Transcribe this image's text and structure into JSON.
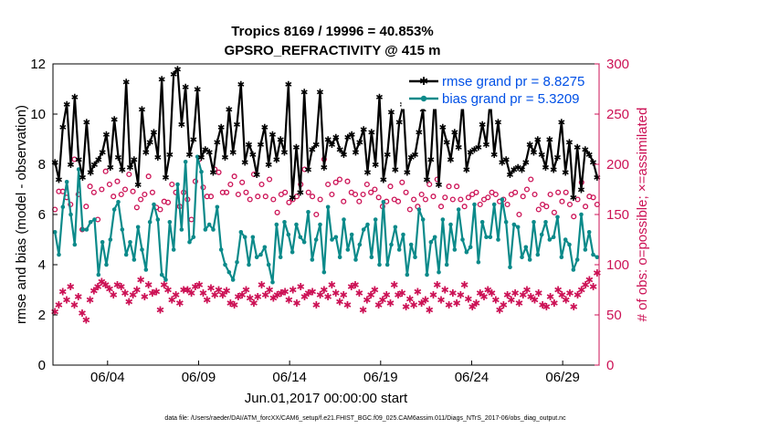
{
  "chart_data": {
    "type": "line",
    "title": "Tropics 8169 / 19996 = 40.853%",
    "subtitle": "GPSRO_REFRACTIVITY @ 415 m",
    "xlabel": "Jun.01,2017 00:00:00 start",
    "ylabel_left": "rmse and bias (model - observation)",
    "ylabel_right": "# of obs: o=possible; ×=assimilated",
    "footer": "data file: /Users/raeder/DAI/ATM_forcXX/CAM6_setup/f.e21.FHIST_BGC.f09_025.CAM6assim.011/Diags_NTrS_2017-06/obs_diag_output.nc",
    "xlim": [
      0,
      30
    ],
    "ylim_left": [
      0,
      12
    ],
    "ylim_right": [
      0,
      300
    ],
    "x_tick_positions": [
      3,
      8,
      13,
      18,
      23,
      28
    ],
    "x_tick_labels": [
      "06/04",
      "06/09",
      "06/14",
      "06/19",
      "06/24",
      "06/29"
    ],
    "y_ticks_left": [
      0,
      2,
      4,
      6,
      8,
      10,
      12
    ],
    "y_ticks_right": [
      0,
      50,
      100,
      150,
      200,
      250,
      300
    ],
    "grid": false,
    "legend_position": "top-right",
    "colors": {
      "rmse": "#000000",
      "bias": "#0b8a8a",
      "obs": "#cc1155"
    },
    "series": [
      {
        "name": "rmse grand pr = 8.8275",
        "axis": "left",
        "values": [
          8.1,
          7.4,
          9.5,
          10.4,
          8.0,
          10.7,
          8.2,
          7.5,
          9.7,
          7.7,
          8.0,
          8.2,
          8.5,
          9.2,
          7.9,
          9.8,
          8.3,
          7.8,
          11.3,
          7.9,
          8.2,
          7.2,
          10.2,
          8.5,
          8.9,
          9.3,
          8.3,
          11.4,
          7.5,
          8.4,
          11.6,
          11.8,
          9.6,
          11.1,
          8.4,
          9.0,
          11.0,
          8.3,
          8.6,
          8.5,
          7.7,
          8.9,
          9.5,
          8.3,
          10.2,
          8.5,
          9.6,
          11.2,
          8.1,
          8.8,
          8.4,
          7.6,
          8.8,
          9.5,
          8.0,
          9.2,
          8.2,
          9.0,
          8.5,
          11.2,
          6.7,
          8.7,
          6.9,
          10.9,
          7.8,
          8.6,
          8.8,
          10.9,
          7.9,
          9.0,
          8.8,
          9.1,
          8.6,
          8.4,
          9.1,
          9.2,
          8.5,
          8.9,
          9.4,
          7.7,
          9.3,
          8.0,
          10.7,
          7.4,
          8.4,
          10.1,
          7.8,
          9.7,
          10.4,
          7.7,
          8.3,
          8.4,
          9.3,
          10.2,
          7.4,
          8.2,
          10.8,
          7.2,
          9.5,
          8.9,
          8.2,
          9.3,
          8.7,
          10.5,
          7.8,
          8.5,
          8.6,
          8.7,
          9.6,
          8.8,
          10.6,
          8.4,
          9.7,
          8.1,
          8.2,
          7.6,
          7.8,
          7.9,
          7.8,
          8.1,
          8.8,
          8.5,
          9.0,
          8.4,
          7.9,
          9.0,
          7.8,
          8.3,
          9.7,
          7.7,
          8.9,
          6.7,
          8.7,
          7.0,
          8.6,
          8.4,
          8.1,
          7.5
        ],
        "marker": "asterisk"
      },
      {
        "name": "bias grand pr = 5.3209",
        "axis": "left",
        "values": [
          5.3,
          4.4,
          6.3,
          7.3,
          6.0,
          4.8,
          7.8,
          5.4,
          5.4,
          5.7,
          5.8,
          3.6,
          4.9,
          4.0,
          5.0,
          6.2,
          6.5,
          5.4,
          4.4,
          4.9,
          4.2,
          5.5,
          4.6,
          3.8,
          5.7,
          6.4,
          5.8,
          3.6,
          3.4,
          5.7,
          4.6,
          7.2,
          5.4,
          8.1,
          4.9,
          5.1,
          8.3,
          7.7,
          5.4,
          5.6,
          5.4,
          6.3,
          4.6,
          4.0,
          3.7,
          3.4,
          4.1,
          5.3,
          5.1,
          4.0,
          5.1,
          4.3,
          4.4,
          4.7,
          4.0,
          3.3,
          5.6,
          4.3,
          5.7,
          5.2,
          4.5,
          5.6,
          5.1,
          4.9,
          6.1,
          4.2,
          5.0,
          5.6,
          3.7,
          6.3,
          5.0,
          5.1,
          4.3,
          5.8,
          4.6,
          5.2,
          4.2,
          4.8,
          5.4,
          5.6,
          4.3,
          5.8,
          4.0,
          6.5,
          4.0,
          4.8,
          5.5,
          4.6,
          5.2,
          3.6,
          4.8,
          4.3,
          6.2,
          5.8,
          3.6,
          4.9,
          5.1,
          3.7,
          5.8,
          4.0,
          5.6,
          4.6,
          6.2,
          5.0,
          4.5,
          4.7,
          6.4,
          4.1,
          5.7,
          5.1,
          5.1,
          6.4,
          5.0,
          6.6,
          5.7,
          3.9,
          5.6,
          5.5,
          4.3,
          4.7,
          4.2,
          5.7,
          4.4,
          5.2,
          5.7,
          5.0,
          5.1,
          5.9,
          4.3,
          5.0,
          4.8,
          3.8,
          4.2,
          6.0,
          4.6,
          5.3,
          4.4,
          4.3
        ],
        "marker": "circle-filled"
      },
      {
        "name": "possible obs (o)",
        "axis": "right",
        "values": [
          155,
          173,
          173,
          167,
          160,
          205,
          170,
          135,
          158,
          178,
          172,
          145,
          175,
          193,
          180,
          168,
          183,
          170,
          175,
          190,
          173,
          157,
          165,
          170,
          188,
          172,
          157,
          155,
          163,
          162,
          180,
          172,
          158,
          172,
          165,
          145,
          183,
          205,
          177,
          168,
          168,
          195,
          192,
          172,
          172,
          180,
          188,
          170,
          182,
          172,
          165,
          190,
          168,
          180,
          168,
          185,
          165,
          152,
          170,
          172,
          162,
          165,
          168,
          180,
          195,
          172,
          168,
          150,
          165,
          205,
          180,
          170,
          182,
          185,
          163,
          183,
          172,
          170,
          163,
          170,
          180,
          172,
          175,
          167,
          158,
          163,
          178,
          165,
          163,
          182,
          172,
          155,
          165,
          158,
          170,
          165,
          180,
          168,
          185,
          158,
          167,
          178,
          165,
          178,
          165,
          158,
          167,
          170,
          172,
          160,
          165,
          167,
          172,
          170,
          163,
          165,
          160,
          170,
          172,
          150,
          168,
          175,
          185,
          170,
          155,
          160,
          158,
          170,
          152,
          172,
          163,
          172,
          160,
          148,
          165,
          182,
          158,
          168,
          167,
          160
        ],
        "marker": "open-circle"
      },
      {
        "name": "assimilated obs (×)",
        "axis": "right",
        "values": [
          53,
          60,
          73,
          65,
          78,
          60,
          68,
          52,
          45,
          65,
          74,
          78,
          83,
          80,
          76,
          70,
          80,
          78,
          72,
          63,
          70,
          75,
          85,
          68,
          80,
          72,
          73,
          55,
          80,
          75,
          65,
          70,
          62,
          75,
          75,
          72,
          78,
          80,
          72,
          65,
          77,
          70,
          75,
          70,
          74,
          62,
          60,
          68,
          70,
          75,
          67,
          62,
          68,
          80,
          70,
          75,
          67,
          70,
          72,
          73,
          65,
          75,
          62,
          78,
          68,
          72,
          73,
          60,
          70,
          75,
          68,
          80,
          72,
          63,
          70,
          60,
          78,
          80,
          72,
          55,
          65,
          70,
          75,
          60,
          65,
          70,
          62,
          80,
          70,
          72,
          58,
          66,
          60,
          73,
          62,
          65,
          55,
          70,
          80,
          65,
          75,
          60,
          72,
          62,
          70,
          80,
          66,
          58,
          62,
          72,
          68,
          75,
          72,
          65,
          55,
          60,
          70,
          65,
          72,
          62,
          70,
          75,
          68,
          65,
          72,
          60,
          58,
          68,
          62,
          75,
          70,
          65,
          72,
          58,
          70,
          75,
          80,
          85,
          78,
          92
        ],
        "marker": "asterisk"
      }
    ]
  }
}
